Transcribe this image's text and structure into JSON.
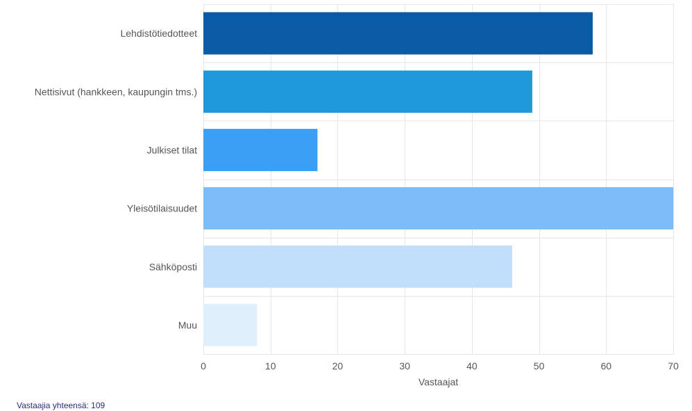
{
  "chart_data": {
    "type": "bar",
    "orientation": "horizontal",
    "categories": [
      "Lehdistötiedotteet",
      "Nettisivut (hankkeen, kaupungin tms.)",
      "Julkiset tilat",
      "Yleisötilaisuudet",
      "Sähköposti",
      "Muu"
    ],
    "values": [
      58,
      49,
      17,
      70,
      46,
      8
    ],
    "colors": [
      "#0a5aa5",
      "#1f98dc",
      "#3aa0f5",
      "#7dbcf8",
      "#bfdffa",
      "#dfeffb"
    ],
    "xlabel": "Vastaajat",
    "xlim": [
      0,
      70
    ],
    "xticks": [
      0,
      10,
      20,
      30,
      40,
      50,
      60,
      70
    ],
    "grid": true
  },
  "footer": {
    "total_text": "Vastaajia yhteensä: 109"
  }
}
